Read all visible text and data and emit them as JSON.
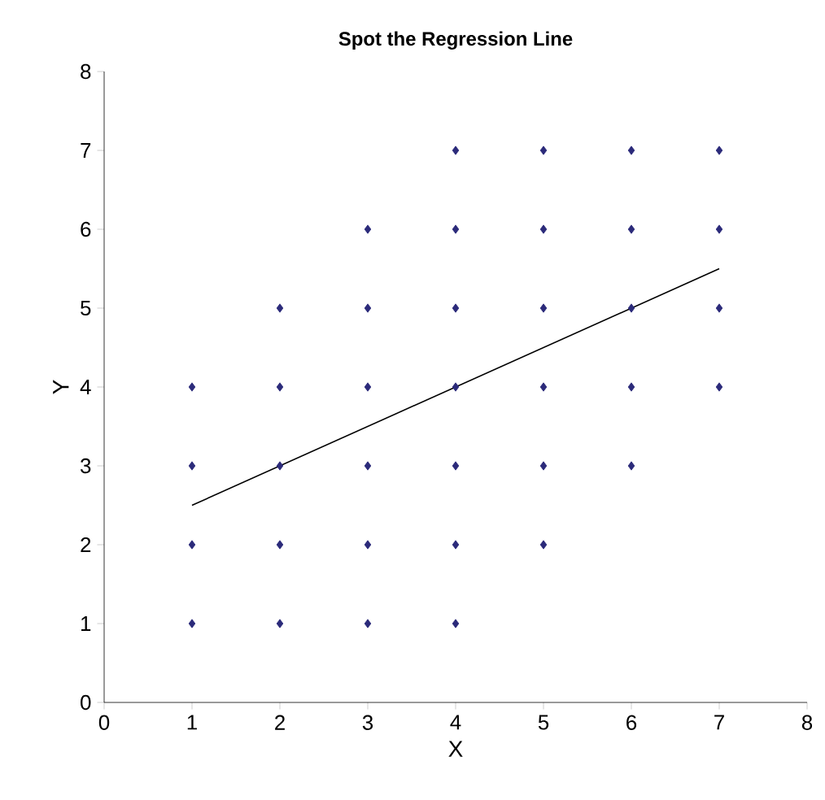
{
  "chart_data": {
    "type": "scatter",
    "title": "Spot the Regression Line",
    "xlabel": "X",
    "ylabel": "Y",
    "xlim": [
      0,
      8
    ],
    "ylim": [
      0,
      8
    ],
    "xticks": [
      0,
      1,
      2,
      3,
      4,
      5,
      6,
      7,
      8
    ],
    "yticks": [
      0,
      1,
      2,
      3,
      4,
      5,
      6,
      7,
      8
    ],
    "marker": "diamond",
    "grid": false,
    "series": [
      {
        "color": "#2b2a7a",
        "x": [
          1,
          1,
          1,
          1,
          2,
          2,
          2,
          2,
          2,
          3,
          3,
          3,
          3,
          3,
          3,
          4,
          4,
          4,
          4,
          4,
          4,
          4,
          5,
          5,
          5,
          5,
          5,
          5,
          6,
          6,
          6,
          6,
          6,
          7,
          7,
          7,
          7
        ],
        "values": [
          1,
          2,
          3,
          4,
          1,
          2,
          3,
          4,
          5,
          1,
          2,
          3,
          4,
          5,
          6,
          1,
          2,
          3,
          4,
          5,
          6,
          7,
          2,
          3,
          4,
          5,
          6,
          7,
          3,
          4,
          5,
          6,
          7,
          4,
          5,
          6,
          7
        ]
      },
      {
        "type": "line",
        "color": "#000000",
        "marker": "none",
        "x": [
          1,
          7
        ],
        "values": [
          2.5,
          5.5
        ]
      }
    ]
  }
}
